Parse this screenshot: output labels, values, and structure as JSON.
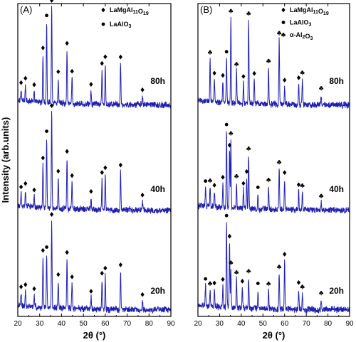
{
  "chart_data": {
    "type": "line",
    "ylabel": "Intensity (arb.units)",
    "y_tick_labels": "none",
    "grid": false,
    "series_color": "#1f1fb4",
    "panels": [
      {
        "tag": "(A)",
        "xlabel": "2θ (°)",
        "xlim": [
          20,
          90
        ],
        "xticks": [
          20,
          30,
          40,
          50,
          60,
          70,
          80,
          90
        ],
        "legend": [
          {
            "marker": "diamond",
            "text": "LaMgAl11O19",
            "base": "LaMgAl",
            "sub1": "11",
            "mid": "O",
            "sub2": "19"
          },
          {
            "marker": "circle",
            "text": "LaAlO3",
            "base": "LaAlO",
            "sub1": "3",
            "mid": "",
            "sub2": ""
          }
        ],
        "series": [
          {
            "name": "80h",
            "peaks": [
              {
                "x": 21.5,
                "h": 0.12,
                "m": "diamond"
              },
              {
                "x": 23.5,
                "h": 0.17,
                "m": "diamond"
              },
              {
                "x": 27.5,
                "h": 0.11,
                "m": "diamond"
              },
              {
                "x": 31.5,
                "h": 0.5,
                "m": "diamond"
              },
              {
                "x": 33.2,
                "h": 0.84,
                "m": "circle"
              },
              {
                "x": 35.5,
                "h": 1.0,
                "m": "diamond"
              },
              {
                "x": 38.5,
                "h": 0.26,
                "m": "diamond"
              },
              {
                "x": 42.5,
                "h": 0.56,
                "m": "diamond"
              },
              {
                "x": 44.8,
                "h": 0.27,
                "m": "diamond"
              },
              {
                "x": 53.5,
                "h": 0.14,
                "m": "diamond"
              },
              {
                "x": 58.5,
                "h": 0.36,
                "m": "diamond"
              },
              {
                "x": 60.0,
                "h": 0.43,
                "m": "diamond"
              },
              {
                "x": 67.0,
                "h": 0.43,
                "m": "diamond"
              },
              {
                "x": 77.0,
                "h": 0.09,
                "m": "diamond"
              }
            ]
          },
          {
            "name": "40h",
            "peaks": [
              {
                "x": 21.5,
                "h": 0.13,
                "m": "diamond"
              },
              {
                "x": 23.5,
                "h": 0.17,
                "m": "diamond"
              },
              {
                "x": 27.5,
                "h": 0.11,
                "m": "diamond"
              },
              {
                "x": 31.5,
                "h": 0.45,
                "m": "diamond"
              },
              {
                "x": 33.2,
                "h": 0.73,
                "m": "circle"
              },
              {
                "x": 35.5,
                "h": 1.0,
                "m": "diamond"
              },
              {
                "x": 38.5,
                "h": 0.32,
                "m": "diamond"
              },
              {
                "x": 42.5,
                "h": 0.53,
                "m": "diamond"
              },
              {
                "x": 44.8,
                "h": 0.28,
                "m": "diamond"
              },
              {
                "x": 53.5,
                "h": 0.12,
                "m": "diamond"
              },
              {
                "x": 58.5,
                "h": 0.32,
                "m": "diamond"
              },
              {
                "x": 60.0,
                "h": 0.37,
                "m": "diamond"
              },
              {
                "x": 67.0,
                "h": 0.4,
                "m": "diamond"
              },
              {
                "x": 77.0,
                "h": 0.09,
                "m": "diamond"
              }
            ]
          },
          {
            "name": "20h",
            "peaks": [
              {
                "x": 21.5,
                "h": 0.14,
                "m": "diamond"
              },
              {
                "x": 23.5,
                "h": 0.17,
                "m": "diamond"
              },
              {
                "x": 27.5,
                "h": 0.13,
                "m": "diamond"
              },
              {
                "x": 31.5,
                "h": 0.58,
                "m": "diamond"
              },
              {
                "x": 33.2,
                "h": 0.62,
                "m": "circle"
              },
              {
                "x": 35.5,
                "h": 1.0,
                "m": "diamond"
              },
              {
                "x": 38.5,
                "h": 0.31,
                "m": "diamond"
              },
              {
                "x": 42.5,
                "h": 0.57,
                "m": "diamond"
              },
              {
                "x": 44.8,
                "h": 0.29,
                "m": "diamond"
              },
              {
                "x": 53.5,
                "h": 0.13,
                "m": "diamond"
              },
              {
                "x": 58.5,
                "h": 0.34,
                "m": "diamond"
              },
              {
                "x": 60.0,
                "h": 0.4,
                "m": "diamond"
              },
              {
                "x": 67.0,
                "h": 0.44,
                "m": "diamond"
              },
              {
                "x": 77.0,
                "h": 0.1,
                "m": "diamond"
              }
            ]
          }
        ]
      },
      {
        "tag": "(B)",
        "xlabel": "2θ (°)",
        "xlim": [
          20,
          90
        ],
        "xticks": [
          20,
          30,
          40,
          50,
          60,
          70,
          80,
          90
        ],
        "legend": [
          {
            "marker": "diamond",
            "text": "LaMgAl11O19",
            "base": "LaMgAl",
            "sub1": "11",
            "mid": "O",
            "sub2": "19"
          },
          {
            "marker": "circle",
            "text": "LaAlO3",
            "base": "LaAlO",
            "sub1": "3",
            "mid": "",
            "sub2": ""
          },
          {
            "marker": "club",
            "text": "α-Al2O3",
            "base": "α-Al",
            "sub1": "2",
            "mid": "O",
            "sub2": "3"
          }
        ],
        "series": [
          {
            "name": "80h",
            "peaks": [
              {
                "x": 25.6,
                "h": 0.5,
                "m": "club"
              },
              {
                "x": 27.6,
                "h": 0.26,
                "m": "diamond"
              },
              {
                "x": 31.5,
                "h": 0.24,
                "m": "diamond"
              },
              {
                "x": 33.2,
                "h": 0.52,
                "m": "circle"
              },
              {
                "x": 35.2,
                "h": 1.0,
                "m": "club"
              },
              {
                "x": 37.8,
                "h": 0.38,
                "m": "club"
              },
              {
                "x": 41.0,
                "h": 0.24,
                "m": "diamond"
              },
              {
                "x": 43.4,
                "h": 0.98,
                "m": "club"
              },
              {
                "x": 46.0,
                "h": 0.28,
                "m": "diamond"
              },
              {
                "x": 52.6,
                "h": 0.43,
                "m": "club"
              },
              {
                "x": 57.5,
                "h": 0.76,
                "m": "club"
              },
              {
                "x": 60.0,
                "h": 0.21,
                "m": "diamond"
              },
              {
                "x": 66.5,
                "h": 0.24,
                "m": "diamond"
              },
              {
                "x": 68.2,
                "h": 0.3,
                "m": "club"
              },
              {
                "x": 76.9,
                "h": 0.12,
                "m": "club"
              }
            ]
          },
          {
            "name": "40h",
            "peaks": [
              {
                "x": 23.5,
                "h": 0.22,
                "m": "circle"
              },
              {
                "x": 25.6,
                "h": 0.23,
                "m": "club"
              },
              {
                "x": 27.6,
                "h": 0.18,
                "m": "diamond"
              },
              {
                "x": 31.5,
                "h": 0.28,
                "m": "diamond"
              },
              {
                "x": 33.2,
                "h": 0.9,
                "m": "circle"
              },
              {
                "x": 34.6,
                "h": 0.66,
                "m": "diamond"
              },
              {
                "x": 35.2,
                "h": 0.8,
                "m": "club"
              },
              {
                "x": 37.8,
                "h": 0.3,
                "m": "club"
              },
              {
                "x": 41.0,
                "h": 0.22,
                "m": "diamond"
              },
              {
                "x": 42.5,
                "h": 0.36,
                "m": "diamond"
              },
              {
                "x": 43.4,
                "h": 0.63,
                "m": "club"
              },
              {
                "x": 47.7,
                "h": 0.18,
                "m": "circle"
              },
              {
                "x": 52.6,
                "h": 0.27,
                "m": "club"
              },
              {
                "x": 57.5,
                "h": 0.48,
                "m": "club"
              },
              {
                "x": 60.0,
                "h": 0.36,
                "m": "diamond"
              },
              {
                "x": 66.5,
                "h": 0.22,
                "m": "diamond"
              },
              {
                "x": 68.2,
                "h": 0.21,
                "m": "club"
              },
              {
                "x": 76.9,
                "h": 0.09,
                "m": "club"
              }
            ]
          },
          {
            "name": "20h",
            "peaks": [
              {
                "x": 23.5,
                "h": 0.24,
                "m": "circle"
              },
              {
                "x": 25.6,
                "h": 0.19,
                "m": "club"
              },
              {
                "x": 27.6,
                "h": 0.2,
                "m": "diamond"
              },
              {
                "x": 31.5,
                "h": 0.25,
                "m": "diamond"
              },
              {
                "x": 33.2,
                "h": 1.0,
                "m": "circle"
              },
              {
                "x": 34.6,
                "h": 0.76,
                "m": "diamond"
              },
              {
                "x": 35.2,
                "h": 0.45,
                "m": "club"
              },
              {
                "x": 37.8,
                "h": 0.34,
                "m": "club"
              },
              {
                "x": 40.5,
                "h": 0.24,
                "m": "diamond"
              },
              {
                "x": 43.4,
                "h": 0.36,
                "m": "club"
              },
              {
                "x": 47.7,
                "h": 0.22,
                "m": "circle"
              },
              {
                "x": 52.6,
                "h": 0.22,
                "m": "club"
              },
              {
                "x": 57.5,
                "h": 0.42,
                "m": "club"
              },
              {
                "x": 60.0,
                "h": 0.57,
                "m": "diamond"
              },
              {
                "x": 66.5,
                "h": 0.24,
                "m": "diamond"
              },
              {
                "x": 68.2,
                "h": 0.19,
                "m": "club"
              },
              {
                "x": 76.9,
                "h": 0.12,
                "m": "club"
              }
            ]
          }
        ]
      }
    ]
  }
}
